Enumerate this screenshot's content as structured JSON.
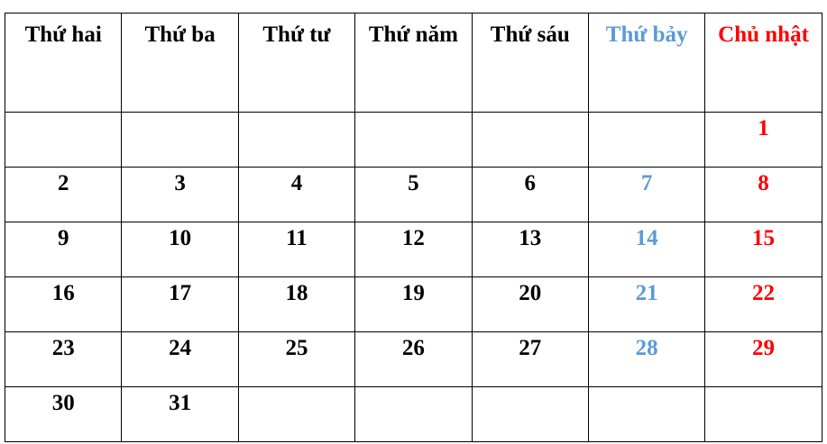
{
  "colors": {
    "saturday": "#5b9bd5",
    "sunday": "#ff0000",
    "weekday": "#000000"
  },
  "headers": [
    "Thứ hai",
    "Thứ ba",
    "Thứ tư",
    "Thứ năm",
    "Thứ sáu",
    "Thứ bảy",
    "Chủ nhật"
  ],
  "weeks": [
    [
      "",
      "",
      "",
      "",
      "",
      "",
      "1"
    ],
    [
      "2",
      "3",
      "4",
      "5",
      "6",
      "7",
      "8"
    ],
    [
      "9",
      "10",
      "11",
      "12",
      "13",
      "14",
      "15"
    ],
    [
      "16",
      "17",
      "18",
      "19",
      "20",
      "21",
      "22"
    ],
    [
      "23",
      "24",
      "25",
      "26",
      "27",
      "28",
      "29"
    ],
    [
      "30",
      "31",
      "",
      "",
      "",
      "",
      ""
    ]
  ]
}
